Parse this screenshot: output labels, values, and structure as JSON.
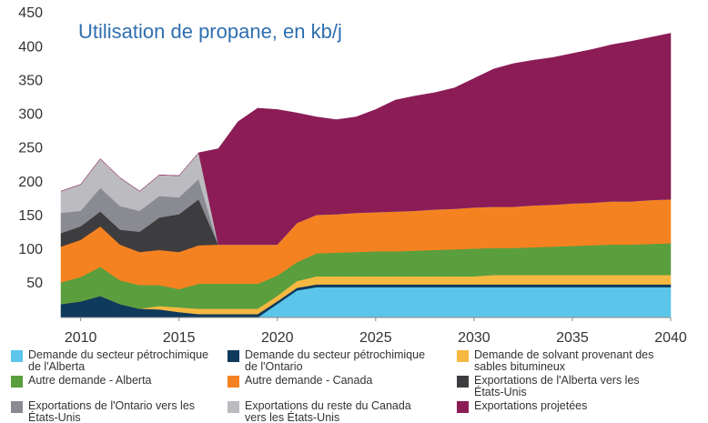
{
  "chart_data": {
    "type": "stacked_area",
    "title": "Utilisation de propane, en kb/j",
    "x": [
      2009,
      2010,
      2011,
      2012,
      2013,
      2014,
      2015,
      2016,
      2017,
      2018,
      2019,
      2020,
      2021,
      2022,
      2023,
      2024,
      2025,
      2026,
      2027,
      2028,
      2029,
      2030,
      2031,
      2032,
      2033,
      2034,
      2035,
      2036,
      2037,
      2038,
      2039,
      2040
    ],
    "xlim": [
      2009,
      2040
    ],
    "xticks": [
      2010,
      2015,
      2020,
      2025,
      2030,
      2035,
      2040
    ],
    "ylim": [
      0,
      450
    ],
    "yticks": [
      50,
      100,
      150,
      200,
      250,
      300,
      350,
      400,
      450
    ],
    "grid": false,
    "series": [
      {
        "name": "Demande du secteur pétrochimique de l'Alberta",
        "color": "#5bc5ea",
        "values": [
          0,
          0,
          0,
          0,
          0,
          0,
          0,
          0,
          0,
          0,
          0,
          20,
          40,
          45,
          45,
          45,
          45,
          45,
          45,
          45,
          45,
          45,
          45,
          45,
          45,
          45,
          45,
          45,
          45,
          45,
          45,
          45
        ]
      },
      {
        "name": "Demande du secteur pétrochimique de l'Ontario",
        "color": "#0e3a5c",
        "values": [
          20,
          24,
          32,
          20,
          13,
          12,
          8,
          5,
          5,
          5,
          5,
          4,
          4,
          4,
          4,
          4,
          4,
          4,
          4,
          4,
          4,
          4,
          4,
          4,
          4,
          4,
          4,
          4,
          4,
          4,
          4,
          4
        ]
      },
      {
        "name": "Demande de solvant provenant des sables bitumineux",
        "color": "#f5b840",
        "values": [
          0,
          0,
          0,
          0,
          0,
          5,
          7,
          8,
          8,
          8,
          8,
          8,
          10,
          12,
          12,
          12,
          12,
          12,
          12,
          12,
          12,
          12,
          14,
          14,
          14,
          14,
          14,
          14,
          14,
          14,
          14,
          14
        ]
      },
      {
        "name": "Autre demande - Alberta",
        "color": "#5a9e3e",
        "values": [
          32,
          36,
          43,
          35,
          35,
          31,
          27,
          37,
          37,
          37,
          37,
          30,
          28,
          34,
          35,
          36,
          37,
          37,
          38,
          39,
          40,
          41,
          40,
          40,
          41,
          42,
          43,
          44,
          45,
          45,
          46,
          47
        ]
      },
      {
        "name": "Autre demande - Canada",
        "color": "#f58220",
        "values": [
          53,
          55,
          60,
          53,
          49,
          52,
          55,
          57,
          58,
          58,
          58,
          46,
          58,
          57,
          57,
          58,
          58,
          59,
          59,
          60,
          60,
          61,
          61,
          61,
          62,
          62,
          63,
          63,
          64,
          64,
          65,
          65
        ]
      },
      {
        "name": "Exportations de l'Alberta vers les États-Unis",
        "color": "#3d3d3f",
        "values": [
          20,
          20,
          22,
          22,
          30,
          48,
          56,
          68,
          0,
          0,
          0,
          0,
          0,
          0,
          0,
          0,
          0,
          0,
          0,
          0,
          0,
          0,
          0,
          0,
          0,
          0,
          0,
          0,
          0,
          0,
          0,
          0
        ]
      },
      {
        "name": "Exportations de l'Ontario vers les États-Unis",
        "color": "#8a8a92",
        "values": [
          30,
          23,
          35,
          35,
          31,
          32,
          25,
          30,
          0,
          0,
          0,
          0,
          0,
          0,
          0,
          0,
          0,
          0,
          0,
          0,
          0,
          0,
          0,
          0,
          0,
          0,
          0,
          0,
          0,
          0,
          0,
          0
        ]
      },
      {
        "name": "Exportations du reste du Canada vers les États-Unis",
        "color": "#bcbcc0",
        "values": [
          32,
          39,
          43,
          42,
          29,
          31,
          32,
          39,
          0,
          0,
          0,
          0,
          0,
          0,
          0,
          0,
          0,
          0,
          0,
          0,
          0,
          0,
          0,
          0,
          0,
          0,
          0,
          0,
          0,
          0,
          0,
          0
        ]
      },
      {
        "name": "Exportations projetées",
        "color": "#8b1c56",
        "values": [
          0,
          0,
          0,
          0,
          0,
          0,
          0,
          0,
          142,
          182,
          202,
          200,
          163,
          145,
          140,
          142,
          152,
          165,
          170,
          173,
          179,
          191,
          204,
          212,
          215,
          218,
          222,
          227,
          232,
          237,
          241,
          246
        ]
      }
    ]
  }
}
